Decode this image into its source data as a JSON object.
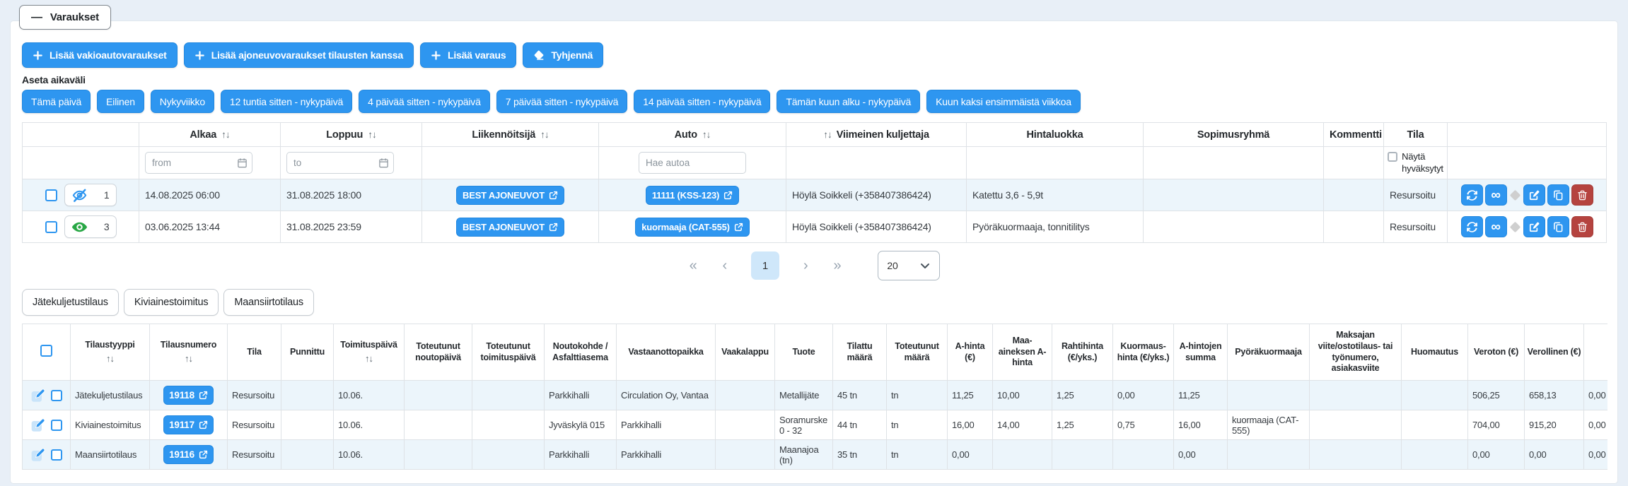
{
  "page": {
    "title": "Varaukset"
  },
  "icons": {
    "collapse": "minus-icon",
    "add": "plus-icon",
    "clear": "eraser-icon",
    "calendar": "calendar-icon",
    "sort": "sort-arrows-icon",
    "hidden": "eye-slash-icon",
    "visible": "eye-icon",
    "external": "external-link-icon",
    "refresh": "refresh-icon",
    "link": "infinity-icon",
    "separator": "diamond-icon",
    "edit": "pencil-square-icon",
    "copy": "copy-icon",
    "delete": "trash-icon",
    "dropdown": "chevron-down-icon"
  },
  "colors": {
    "primary": "#2e96f0",
    "danger": "#b5433f",
    "row_alt": "#ecf5fb",
    "eye_visible": "#28a745",
    "page_background": "#e8eff7"
  },
  "toolbar": {
    "buttons": [
      {
        "label": "Lisää vakioautovaraukset"
      },
      {
        "label": "Lisää ajoneuvovaraukset tilausten kanssa"
      },
      {
        "label": "Lisää varaus"
      },
      {
        "label": "Tyhjennä"
      }
    ]
  },
  "date_range": {
    "label": "Aseta aikaväli",
    "presets": [
      "Tämä päivä",
      "Eilinen",
      "Nykyviikko",
      "12 tuntia sitten - nykypäivä",
      "4 päivää sitten - nykypäivä",
      "7 päivää sitten - nykypäivä",
      "14 päivää sitten - nykypäivä",
      "Tämän kuun alku - nykypäivä",
      "Kuun kaksi ensimmäistä viikkoa"
    ]
  },
  "reservations_table": {
    "headers": {
      "alkaa": "Alkaa",
      "loppuu": "Loppuu",
      "liikennoitsija": "Liikennöitsijä",
      "auto": "Auto",
      "viimeinen_kuljettaja": "Viimeinen kuljettaja",
      "hintaluokka": "Hintaluokka",
      "sopimusryhma": "Sopimusryhmä",
      "kommentti": "Kommentti",
      "tila": "Tila"
    },
    "filters": {
      "from_placeholder": "from",
      "to_placeholder": "to",
      "auto_placeholder": "Hae autoa",
      "show_approved_label": "Näytä hyväksytyt"
    },
    "rows": [
      {
        "visibility": "hidden",
        "count": "1",
        "alkaa": "14.08.2025 06:00",
        "loppuu": "31.08.2025 18:00",
        "liikennoitsija": "BEST AJONEUVOT",
        "auto": "11111 (KSS-123)",
        "viimeinen_kuljettaja": "Höylä Soikkeli (+358407386424)",
        "hintaluokka": "Katettu 3,6 - 5,9t",
        "sopimusryhma": "",
        "kommentti": "",
        "tila": "Resursoitu"
      },
      {
        "visibility": "visible",
        "count": "3",
        "alkaa": "03.06.2025 13:44",
        "loppuu": "31.08.2025 23:59",
        "liikennoitsija": "BEST AJONEUVOT",
        "auto": "kuormaaja (CAT-555)",
        "viimeinen_kuljettaja": "Höylä Soikkeli (+358407386424)",
        "hintaluokka": "Pyöräkuormaaja, tonnitilitys",
        "sopimusryhma": "",
        "kommentti": "",
        "tila": "Resursoitu"
      }
    ]
  },
  "pagination": {
    "first": "«",
    "prev": "‹",
    "current_page": "1",
    "next": "›",
    "last": "»",
    "page_size": "20"
  },
  "order_tabs": [
    "Jätekuljetustilaus",
    "Kiviainestoimitus",
    "Maansiirtotilaus"
  ],
  "orders_table": {
    "headers": {
      "tilaustyyppi": "Tilaustyyppi",
      "tilausnumero": "Tilausnumero",
      "tila": "Tila",
      "punnittu": "Punnittu",
      "toimituspaiva": "Toimituspäivä",
      "toteutunut_noutopaiva": "Toteutunut noutopäivä",
      "toteutunut_toimituspaiva": "Toteutunut toimituspäivä",
      "noutokohde": "Noutokohde / Asfalttiasema",
      "vastaanottopaikka": "Vastaanottopaikka",
      "vaakalappu": "Vaakalappu",
      "tuote": "Tuote",
      "tilattu_maara": "Tilattu määrä",
      "toteutunut_maara": "Toteutunut määrä",
      "a_hinta": "A-hinta (€)",
      "maa_aineksen_a_hinta": "Maa-aineksen A-hinta",
      "rahtihinta": "Rahtihinta (€/yks.)",
      "kuormaushinta": "Kuormaus-hinta (€/yks.)",
      "a_hintojen_summa": "A-hintojen summa",
      "pyorakuormaaja": "Pyöräkuormaaja",
      "maksajan_viite": "Maksajan viite/ostotilaus- tai työnumero, asiakasviite",
      "huomautus": "Huomautus",
      "veroton": "Veroton (€)",
      "verollinen": "Verollinen (€)",
      "clipped": ""
    },
    "rows": [
      {
        "tilaustyyppi": "Jätekuljetustilaus",
        "tilausnumero": "19118",
        "tila": "Resursoitu",
        "punnittu": "",
        "toimituspaiva": "10.06.",
        "toteutunut_noutopaiva": "",
        "toteutunut_toimituspaiva": "",
        "noutokohde": "Parkkihalli",
        "vastaanottopaikka": "Circulation Oy, Vantaa",
        "vaakalappu": "",
        "tuote": "Metallijäte",
        "tilattu_maara": "45 tn",
        "toteutunut_maara": "tn",
        "a_hinta": "11,25",
        "maa_aineksen_a_hinta": "10,00",
        "rahtihinta": "1,25",
        "kuormaushinta": "0,00",
        "a_hintojen_summa": "11,25",
        "pyorakuormaaja": "",
        "maksajan_viite": "",
        "huomautus": "",
        "veroton": "506,25",
        "verollinen": "658,13",
        "clipped": "0,00"
      },
      {
        "tilaustyyppi": "Kiviainestoimitus",
        "tilausnumero": "19117",
        "tila": "Resursoitu",
        "punnittu": "",
        "toimituspaiva": "10.06.",
        "toteutunut_noutopaiva": "",
        "toteutunut_toimituspaiva": "",
        "noutokohde": "Jyväskylä 015",
        "vastaanottopaikka": "Parkkihalli",
        "vaakalappu": "",
        "tuote": "Soramurske 0 - 32",
        "tilattu_maara": "44 tn",
        "toteutunut_maara": "tn",
        "a_hinta": "16,00",
        "maa_aineksen_a_hinta": "14,00",
        "rahtihinta": "1,25",
        "kuormaushinta": "0,75",
        "a_hintojen_summa": "16,00",
        "pyorakuormaaja": "kuormaaja (CAT-555)",
        "maksajan_viite": "",
        "huomautus": "",
        "veroton": "704,00",
        "verollinen": "915,20",
        "clipped": "0,00"
      },
      {
        "tilaustyyppi": "Maansiirtotilaus",
        "tilausnumero": "19116",
        "tila": "Resursoitu",
        "punnittu": "",
        "toimituspaiva": "10.06.",
        "toteutunut_noutopaiva": "",
        "toteutunut_toimituspaiva": "",
        "noutokohde": "Parkkihalli",
        "vastaanottopaikka": "Parkkihalli",
        "vaakalappu": "",
        "tuote": "Maanajoa (tn)",
        "tilattu_maara": "35 tn",
        "toteutunut_maara": "tn",
        "a_hinta": "0,00",
        "maa_aineksen_a_hinta": "",
        "rahtihinta": "",
        "kuormaushinta": "",
        "a_hintojen_summa": "0,00",
        "pyorakuormaaja": "",
        "maksajan_viite": "",
        "huomautus": "",
        "veroton": "0,00",
        "verollinen": "0,00",
        "clipped": "0,00"
      }
    ]
  }
}
